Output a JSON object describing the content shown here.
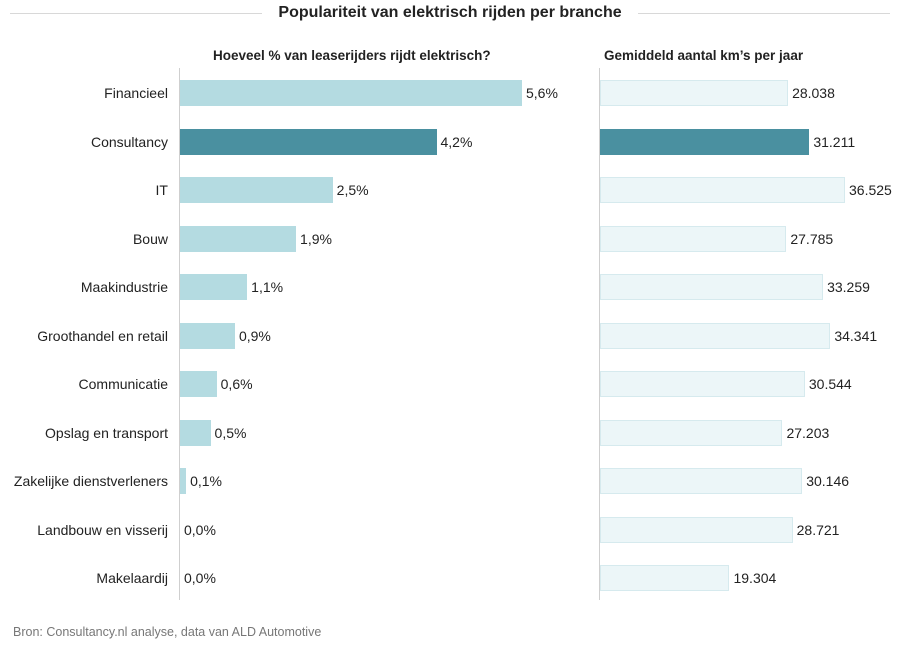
{
  "chart_data": [
    {
      "type": "bar",
      "orientation": "horizontal",
      "title": "Hoeveel % van leaserijders rijdt elektrisch?",
      "categories": [
        "Financieel",
        "Consultancy",
        "IT",
        "Bouw",
        "Maakindustrie",
        "Groothandel en retail",
        "Communicatie",
        "Opslag en transport",
        "Zakelijke dienstverleners",
        "Landbouw en visserij",
        "Makelaardij"
      ],
      "values": [
        5.6,
        4.2,
        2.5,
        1.9,
        1.1,
        0.9,
        0.6,
        0.5,
        0.1,
        0.0,
        0.0
      ],
      "value_labels": [
        "5,6%",
        "4,2%",
        "2,5%",
        "1,9%",
        "1,1%",
        "0,9%",
        "0,6%",
        "0,5%",
        "0,1%",
        "0,0%",
        "0,0%"
      ],
      "highlight_index": 1,
      "xlim": [
        0,
        5.6
      ],
      "colors": {
        "bar": "#b4dbe1",
        "highlight": "#4a90a0",
        "bar_border": "#b4dbe1"
      }
    },
    {
      "type": "bar",
      "orientation": "horizontal",
      "title": "Gemiddeld aantal km’s per jaar",
      "categories": [
        "Financieel",
        "Consultancy",
        "IT",
        "Bouw",
        "Maakindustrie",
        "Groothandel en retail",
        "Communicatie",
        "Opslag en transport",
        "Zakelijke dienstverleners",
        "Landbouw en visserij",
        "Makelaardij"
      ],
      "values": [
        28038,
        31211,
        36525,
        27785,
        33259,
        34341,
        30544,
        27203,
        30146,
        28721,
        19304
      ],
      "value_labels": [
        "28.038",
        "31.211",
        "36.525",
        "27.785",
        "33.259",
        "34.341",
        "30.544",
        "27.203",
        "30.146",
        "28.721",
        "19.304"
      ],
      "highlight_index": 1,
      "xlim": [
        0,
        36525
      ],
      "colors": {
        "bar": "#ecf6f8",
        "highlight": "#4a90a0",
        "bar_border": "#d6eaee"
      }
    }
  ],
  "header": {
    "title": "Populariteit van elektrisch rijden per branche"
  },
  "footer": {
    "source": "Bron: Consultancy.nl analyse, data van ALD Automotive"
  }
}
